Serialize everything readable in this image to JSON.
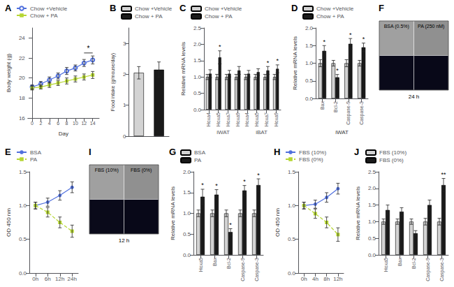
{
  "chart_data": [
    {
      "type": "line",
      "title": "A",
      "xlabel": "Day",
      "ylabel": "Body weight (g)",
      "xlim": [
        -1,
        15.5
      ],
      "xticks": [
        0,
        2,
        4,
        6,
        8,
        10,
        12,
        14
      ],
      "ylim": [
        16,
        25
      ],
      "yticks": [
        16,
        18,
        20,
        22,
        24
      ],
      "grid": false,
      "series": [
        {
          "name": "Chow +Vehicle",
          "marker": "emptyCircle",
          "line_style": "solid",
          "x": [
            0,
            2,
            4,
            6,
            8,
            10,
            12,
            14
          ],
          "values": [
            19.1,
            19.4,
            19.8,
            20.2,
            20.7,
            21.0,
            21.5,
            21.8
          ],
          "errors": [
            0.2,
            0.25,
            0.3,
            0.3,
            0.35,
            0.3,
            0.35,
            0.4
          ]
        },
        {
          "name": "Chow + PA",
          "marker": "rect",
          "line_style": "solid",
          "x": [
            0,
            2,
            4,
            6,
            8,
            10,
            12,
            14
          ],
          "values": [
            19.0,
            19.1,
            19.3,
            19.5,
            19.7,
            19.9,
            20.1,
            20.3
          ],
          "errors": [
            0.2,
            0.2,
            0.25,
            0.25,
            0.3,
            0.3,
            0.3,
            0.35
          ]
        }
      ],
      "annotations": [
        {
          "text": "*",
          "x": [
            12,
            14
          ],
          "y": 22.5
        }
      ]
    },
    {
      "type": "bar",
      "title": "B",
      "ylabel": "Food intake (g/mouse/day)",
      "categories": [
        null,
        null
      ],
      "ylim": [
        0,
        3.5
      ],
      "yticks": [
        0,
        1,
        2,
        3
      ],
      "grid": false,
      "tick_labels": "y",
      "series": [
        {
          "name": "Chow +Vehicle",
          "color": "#d3d3d3",
          "values": [
            2.05,
            null
          ],
          "errors": [
            0.2,
            null
          ]
        },
        {
          "name": "Chow + PA",
          "color": "#1a1a1a",
          "values": [
            null,
            2.15
          ],
          "errors": [
            null,
            0.25
          ]
        }
      ]
    },
    {
      "type": "bar",
      "title": "C",
      "ylabel": "Relative mRNA levels",
      "categories": [
        "Hoxa4",
        "Hoxa5",
        "Hoxa7",
        "Hoxa9",
        "Hoxa4",
        "Hoxa5",
        "Hoxa7",
        "Hoxa9"
      ],
      "groups": [
        "iWAT",
        "iBAT"
      ],
      "ylim": [
        0,
        2.5
      ],
      "yticks": [
        {
          "value": 0,
          "label": "0.0"
        },
        0.5,
        {
          "value": 1.0,
          "label": "1.0"
        },
        1.5,
        {
          "value": 2.0,
          "label": "2.0"
        },
        2.5
      ],
      "grid": false,
      "series": [
        {
          "name": "Chow +Vehicle",
          "color": "#d3d3d3",
          "values": [
            1.0,
            1.0,
            1.0,
            1.0,
            1.0,
            1.0,
            1.0,
            1.0
          ],
          "errors": [
            0.08,
            0.08,
            0.08,
            0.08,
            0.08,
            0.08,
            0.08,
            0.08
          ]
        },
        {
          "name": "Chow + PA",
          "color": "#1a1a1a",
          "values": [
            1.1,
            1.6,
            1.1,
            1.2,
            1.1,
            1.15,
            1.2,
            1.25
          ],
          "errors": [
            0.12,
            0.2,
            0.1,
            0.12,
            0.1,
            0.1,
            0.12,
            0.12
          ],
          "annotations": [
            null,
            "*",
            null,
            null,
            null,
            null,
            "*",
            "*"
          ]
        }
      ]
    },
    {
      "type": "bar",
      "title": "D",
      "ylabel": "Relative mRNA levels",
      "xlabel": "iWAT",
      "categories": [
        "Bax",
        "Bcl-2",
        "Caspase-9",
        "Caspase-3"
      ],
      "ylim": [
        0,
        2.0
      ],
      "yticks": [
        {
          "value": 0,
          "label": "0.0"
        },
        0.5,
        {
          "value": 1.0,
          "label": "1.0"
        },
        1.5,
        {
          "value": 2.0,
          "label": "2.0"
        }
      ],
      "grid": false,
      "series": [
        {
          "name": "Chow +Vehicle",
          "color": "#d3d3d3",
          "values": [
            1.0,
            1.0,
            1.0,
            1.0
          ],
          "errors": [
            0.1,
            0.08,
            0.1,
            0.08
          ]
        },
        {
          "name": "Chow + PA",
          "color": "#1a1a1a",
          "values": [
            1.35,
            0.6,
            1.55,
            1.45
          ],
          "errors": [
            0.15,
            0.08,
            0.15,
            0.12
          ],
          "annotations": [
            "*",
            "*",
            "*",
            "*"
          ]
        }
      ]
    },
    {
      "type": "image_grid",
      "title": "F",
      "annotations": [
        "BSA (0.5%)",
        "PA (250 nM)"
      ],
      "xlabel": "24 h",
      "colors": [
        "#a0a0a0",
        "#909090",
        "#0a0a1a",
        "#080818"
      ]
    },
    {
      "type": "line",
      "title": "E",
      "ylabel": "OD 450 nm",
      "categories": [
        "0h",
        "6h",
        "12h",
        "24h"
      ],
      "ylim": [
        0.0,
        1.5
      ],
      "yticks": [
        {
          "value": 0.0,
          "label": "0.0"
        },
        0.5,
        {
          "value": 1.0,
          "label": "1.0"
        },
        1.5
      ],
      "grid": false,
      "series": [
        {
          "name": "BSA",
          "marker": "circle",
          "line_style": "solid",
          "values": [
            1.0,
            1.05,
            1.15,
            1.27
          ],
          "errors": [
            0.05,
            0.06,
            0.07,
            0.08
          ]
        },
        {
          "name": "PA",
          "marker": "rect",
          "line_style": "dashed",
          "values": [
            1.0,
            0.9,
            0.75,
            0.62
          ],
          "errors": [
            0.05,
            0.07,
            0.08,
            0.09
          ]
        }
      ]
    },
    {
      "type": "image_grid",
      "title": "I",
      "annotations": [
        "FBS (10%)",
        "FBS (0%)"
      ],
      "xlabel": "12 h",
      "colors": [
        "#a0a0a0",
        "#909090",
        "#0a0a1a",
        "#080818"
      ]
    },
    {
      "type": "bar",
      "title": "G",
      "ylabel": "Relative mRNA levels",
      "categories": [
        "Hoxa5",
        "Bax",
        "Bcl-2",
        "Caspase-9",
        "Caspase-3"
      ],
      "ylim": [
        0,
        2.0
      ],
      "yticks": [
        {
          "value": 0,
          "label": "0.0"
        },
        0.5,
        {
          "value": 1.0,
          "label": "1.0"
        },
        1.5,
        {
          "value": 2.0,
          "label": "2.0"
        }
      ],
      "grid": false,
      "series": [
        {
          "name": "BSA",
          "color": "#d3d3d3",
          "values": [
            1.0,
            1.0,
            1.0,
            1.0,
            1.0
          ],
          "errors": [
            0.08,
            0.08,
            0.08,
            0.08,
            0.08
          ]
        },
        {
          "name": "PA",
          "color": "#1a1a1a",
          "values": [
            1.4,
            1.45,
            0.55,
            1.55,
            1.68
          ],
          "errors": [
            0.18,
            0.12,
            0.08,
            0.12,
            0.15
          ],
          "annotations": [
            "*",
            "*",
            "*",
            "*",
            "*"
          ]
        }
      ]
    },
    {
      "type": "line",
      "title": "H",
      "ylabel": "OD 450 nm",
      "categories": [
        "0h",
        "4h",
        "8h",
        "12h"
      ],
      "ylim": [
        0.0,
        1.5
      ],
      "yticks": [
        {
          "value": 0.0,
          "label": "0.0"
        },
        0.5,
        {
          "value": 1.0,
          "label": "1.0"
        },
        1.5
      ],
      "grid": false,
      "series": [
        {
          "name": "FBS (10%)",
          "marker": "circle",
          "line_style": "solid",
          "values": [
            1.0,
            1.02,
            1.12,
            1.25
          ],
          "errors": [
            0.05,
            0.06,
            0.07,
            0.08
          ]
        },
        {
          "name": "FBS (0%)",
          "marker": "rect",
          "line_style": "dashed",
          "values": [
            1.0,
            0.88,
            0.75,
            0.57
          ],
          "errors": [
            0.05,
            0.07,
            0.08,
            0.1
          ]
        }
      ]
    },
    {
      "type": "bar",
      "title": "J",
      "ylabel": "Relative mRNA levels",
      "categories": [
        "Hoxa5",
        "Bax",
        "Bcl-2",
        "Caspase-9",
        "Caspase-3"
      ],
      "ylim": [
        0,
        2.5
      ],
      "yticks": [
        {
          "value": 0,
          "label": "0.0"
        },
        0.5,
        {
          "value": 1.0,
          "label": "1.0"
        },
        1.5,
        {
          "value": 2.0,
          "label": "2.0"
        },
        2.5
      ],
      "grid": false,
      "series": [
        {
          "name": "FBS (10%)",
          "color": "#d3d3d3",
          "values": [
            1.0,
            1.0,
            1.0,
            1.0,
            1.0
          ],
          "errors": [
            0.08,
            0.08,
            0.08,
            0.1,
            0.1
          ]
        },
        {
          "name": "FBS (0%)",
          "color": "#1a1a1a",
          "values": [
            1.35,
            1.3,
            0.65,
            1.5,
            2.1
          ],
          "errors": [
            0.15,
            0.12,
            0.08,
            0.15,
            0.2
          ],
          "annotations": [
            null,
            null,
            null,
            null,
            "**"
          ]
        }
      ]
    }
  ]
}
